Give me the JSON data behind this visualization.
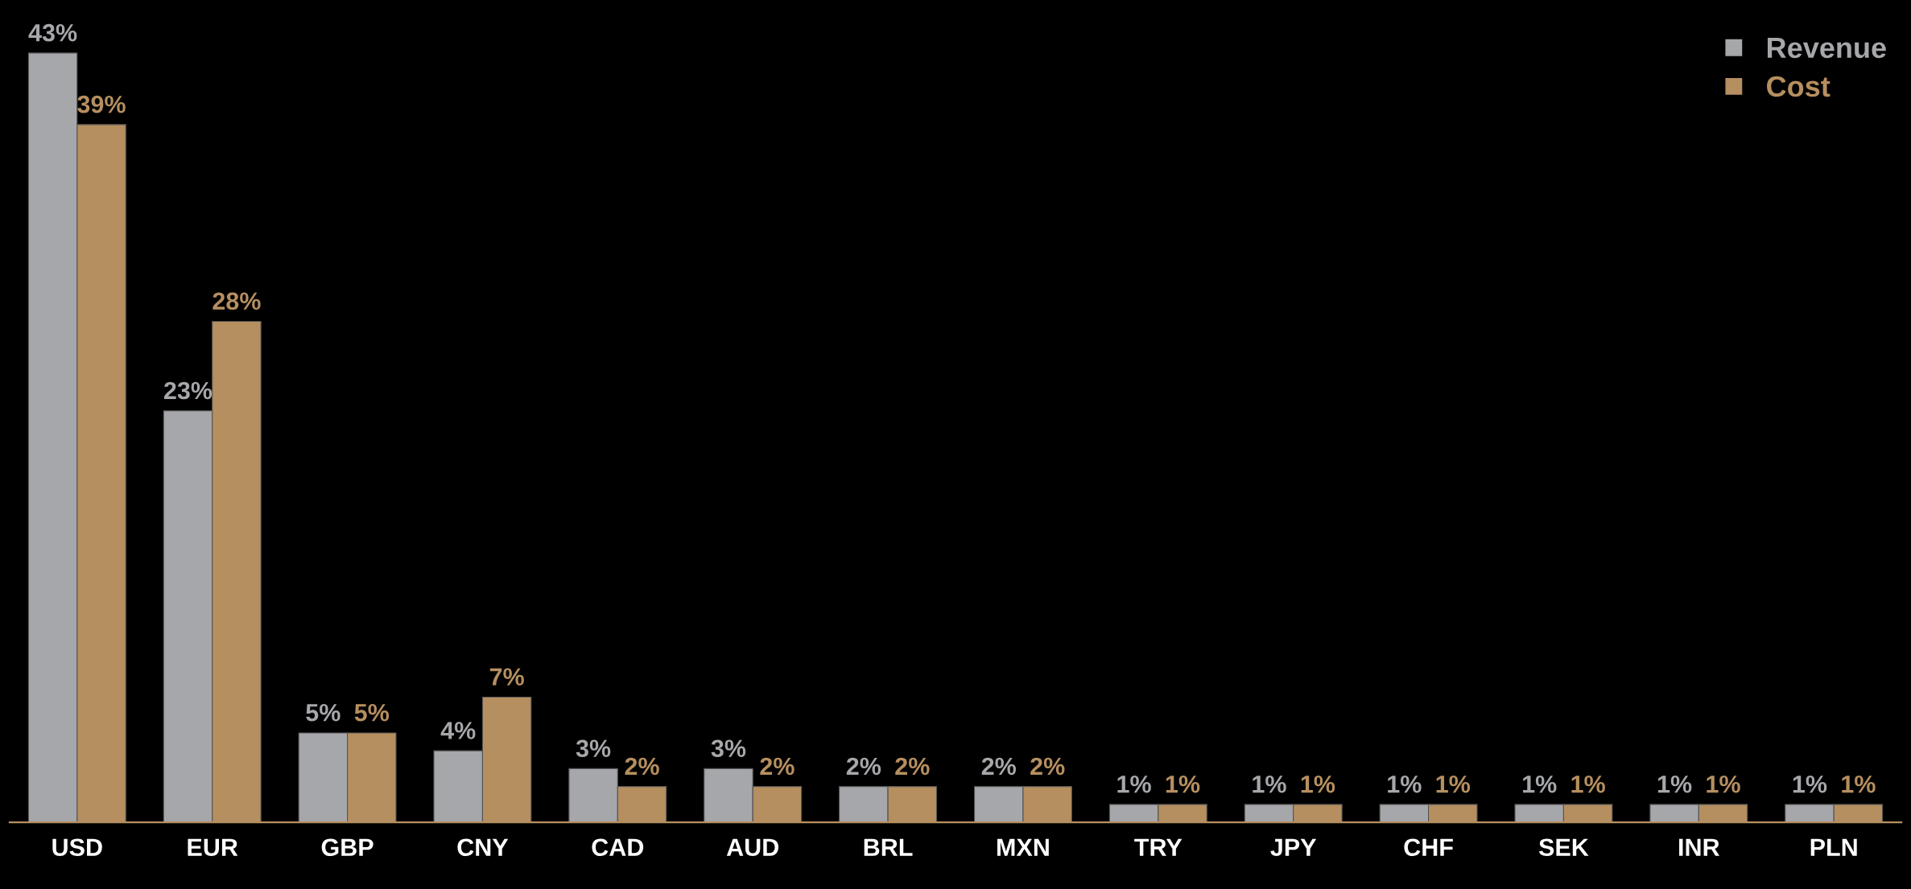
{
  "chart_data": {
    "type": "bar",
    "categories": [
      "USD",
      "EUR",
      "GBP",
      "CNY",
      "CAD",
      "AUD",
      "BRL",
      "MXN",
      "TRY",
      "JPY",
      "CHF",
      "SEK",
      "INR",
      "PLN"
    ],
    "series": [
      {
        "name": "Revenue",
        "color": "#a6a7aa",
        "values": [
          43,
          23,
          5,
          4,
          3,
          3,
          2,
          2,
          1,
          1,
          1,
          1,
          1,
          1
        ],
        "value_labels": [
          "43%",
          "23%",
          "5%",
          "4%",
          "3%",
          "3%",
          "2%",
          "2%",
          "1%",
          "1%",
          "1%",
          "1%",
          "1%",
          "1%"
        ]
      },
      {
        "name": "Cost",
        "color": "#b68f60",
        "values": [
          39,
          28,
          5,
          7,
          2,
          2,
          2,
          2,
          1,
          1,
          1,
          1,
          1,
          1
        ],
        "value_labels": [
          "39%",
          "28%",
          "5%",
          "7%",
          "2%",
          "2%",
          "2%",
          "2%",
          "1%",
          "1%",
          "1%",
          "1%",
          "1%",
          "1%"
        ]
      }
    ],
    "legend": "top right",
    "grid": false
  }
}
